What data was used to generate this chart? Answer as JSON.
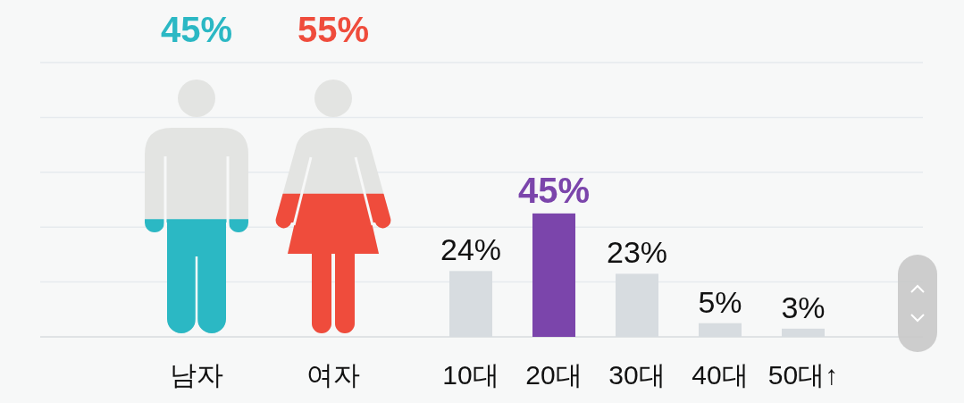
{
  "chart_data": [
    {
      "type": "other",
      "categories": [
        "남자",
        "여자"
      ],
      "values": [
        45,
        55
      ],
      "colors": [
        "#2bb8c4",
        "#ef4c3c"
      ],
      "value_labels": [
        "45%",
        "55%"
      ]
    },
    {
      "type": "bar",
      "categories": [
        "10대",
        "20대",
        "30대",
        "40대",
        "50대↑"
      ],
      "values": [
        24,
        45,
        23,
        5,
        3
      ],
      "colors": [
        "#d7dce0",
        "#7b45ab",
        "#d7dce0",
        "#d7dce0",
        "#d7dce0"
      ],
      "value_labels": [
        "24%",
        "45%",
        "23%",
        "5%",
        "3%"
      ],
      "ylim": [
        0,
        100
      ],
      "yticks": [
        {
          "value": 0,
          "label": null
        },
        {
          "value": 20,
          "label": null
        },
        {
          "value": 40,
          "label": null
        },
        {
          "value": 60,
          "label": null
        },
        {
          "value": 80,
          "label": null
        },
        {
          "value": 100,
          "label": null
        }
      ],
      "grid": "y",
      "tick_labels": "x"
    }
  ]
}
